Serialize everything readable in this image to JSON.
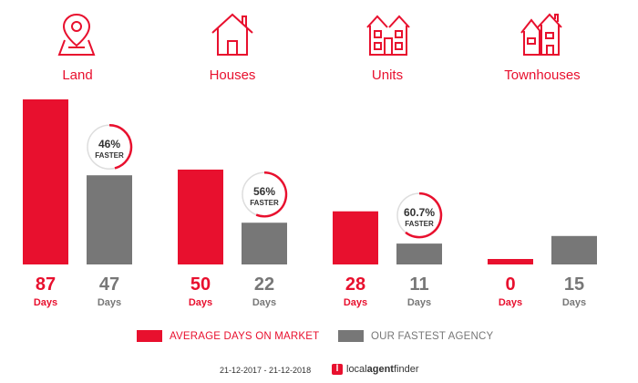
{
  "categories": [
    {
      "label": "Land",
      "icon": "land-pin-icon"
    },
    {
      "label": "Houses",
      "icon": "house-icon"
    },
    {
      "label": "Units",
      "icon": "units-icon"
    },
    {
      "label": "Townhouses",
      "icon": "townhouses-icon"
    }
  ],
  "chart_data": {
    "type": "bar",
    "categories": [
      "Land",
      "Houses",
      "Units",
      "Townhouses"
    ],
    "series": [
      {
        "name": "AVERAGE DAYS ON MARKET",
        "values": [
          87,
          50,
          28,
          0
        ],
        "color": "#e8102e"
      },
      {
        "name": "OUR FASTEST AGENCY",
        "values": [
          47,
          22,
          11,
          15
        ],
        "color": "#777777"
      }
    ],
    "value_unit": "Days",
    "faster_badges": [
      {
        "category": "Land",
        "percent": "46%",
        "label": "FASTER",
        "fraction": 0.46
      },
      {
        "category": "Houses",
        "percent": "56%",
        "label": "FASTER",
        "fraction": 0.56
      },
      {
        "category": "Units",
        "percent": "60.7%",
        "label": "FASTER",
        "fraction": 0.607
      }
    ],
    "ylim": [
      0,
      87
    ],
    "grid": false,
    "legend_position": "bottom"
  },
  "legend": {
    "average_label": "AVERAGE DAYS ON MARKET",
    "fastest_label": "OUR FASTEST AGENCY"
  },
  "footer": {
    "date_range": "21-12-2017 - 21-12-2018",
    "brand_mark": "l",
    "brand_prefix": "local",
    "brand_bold": "agent",
    "brand_suffix": "finder"
  },
  "colors": {
    "red": "#e8102e",
    "grey": "#777777",
    "text_grey": "#777777"
  }
}
